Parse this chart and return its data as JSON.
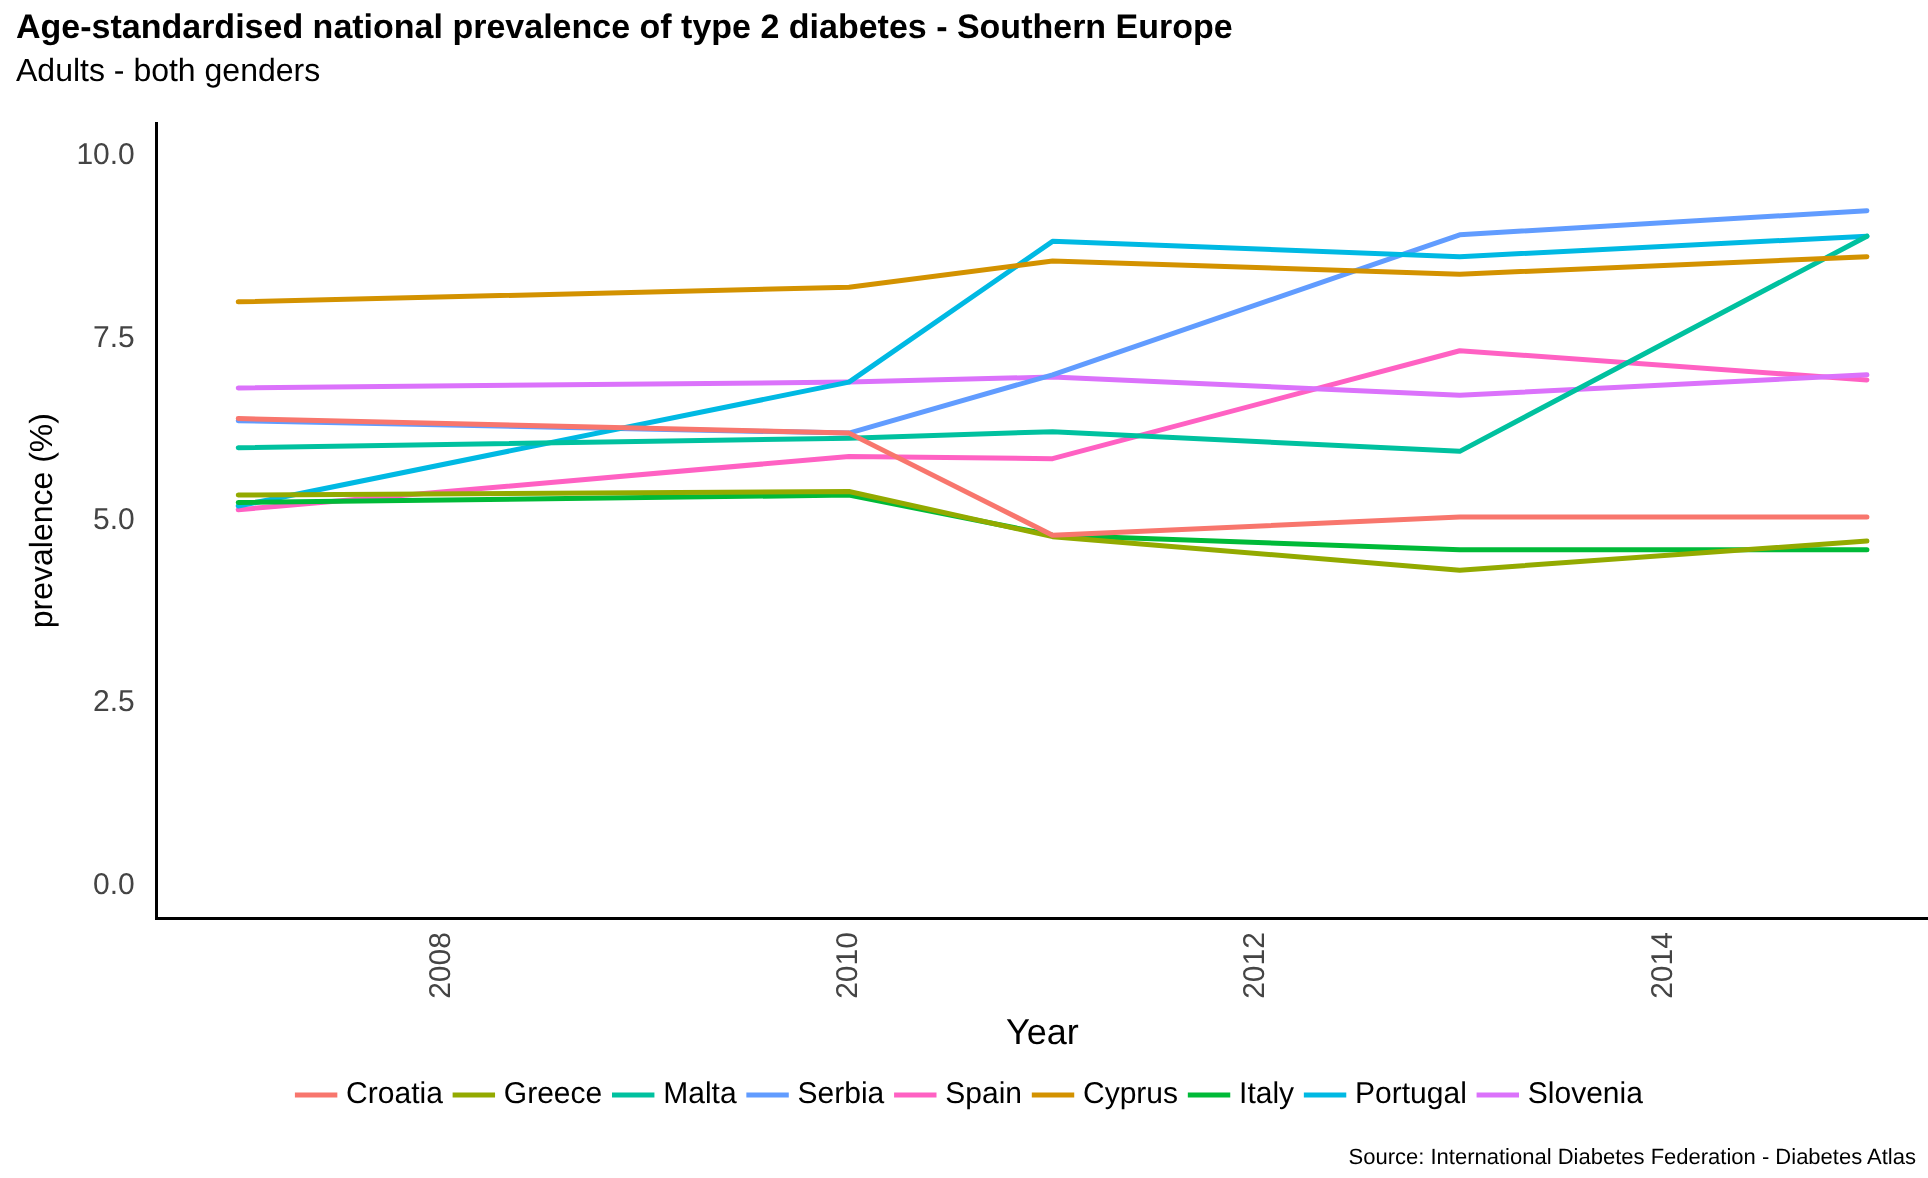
{
  "chart_data": {
    "type": "line",
    "title": "Age-standardised national prevalence of type 2 diabetes - Southern Europe",
    "subtitle": "Adults - both genders",
    "xlabel": "Year",
    "ylabel": "prevalence (%)",
    "annotations": [
      "Source: International Diabetes Federation - Diabetes Atlas"
    ],
    "x": [
      2007,
      2010,
      2011,
      2013,
      2015
    ],
    "series": [
      {
        "name": "Croatia",
        "color": "#f8766d",
        "values": [
          6.4,
          6.2,
          4.8,
          5.05,
          5.05
        ]
      },
      {
        "name": "Cyprus",
        "color": "#d39200",
        "values": [
          8.0,
          8.2,
          8.56,
          8.38,
          8.62
        ]
      },
      {
        "name": "Greece",
        "color": "#93aa00",
        "values": [
          5.35,
          5.4,
          4.78,
          4.32,
          4.72
        ]
      },
      {
        "name": "Italy",
        "color": "#00ba38",
        "values": [
          5.25,
          5.35,
          4.8,
          4.6,
          4.6
        ]
      },
      {
        "name": "Malta",
        "color": "#00c19f",
        "values": [
          6.0,
          6.13,
          6.22,
          5.95,
          8.9
        ]
      },
      {
        "name": "Portugal",
        "color": "#00b9e3",
        "values": [
          5.2,
          6.9,
          8.83,
          8.62,
          8.9
        ]
      },
      {
        "name": "Serbia",
        "color": "#619cff",
        "values": [
          6.37,
          6.2,
          7.0,
          8.92,
          9.25
        ]
      },
      {
        "name": "Slovenia",
        "color": "#db72fb",
        "values": [
          6.82,
          6.9,
          6.97,
          6.72,
          7.0
        ]
      },
      {
        "name": "Spain",
        "color": "#ff61c3",
        "values": [
          5.15,
          5.88,
          5.85,
          7.33,
          6.93
        ]
      }
    ],
    "xlim": [
      2006.6,
      2015.3
    ],
    "xticks": [
      2008,
      2010,
      2012,
      2014
    ],
    "ylim": [
      -0.45,
      10.45
    ],
    "yticks": [
      {
        "value": 0,
        "label": "0.0"
      },
      {
        "value": 2.5,
        "label": "2.5"
      },
      {
        "value": 5,
        "label": "5.0"
      },
      {
        "value": 7.5,
        "label": "7.5"
      },
      {
        "value": 10,
        "label": "10.0"
      }
    ],
    "grid": false,
    "legend": "bottom",
    "marker": "none",
    "line_style": "solid"
  }
}
